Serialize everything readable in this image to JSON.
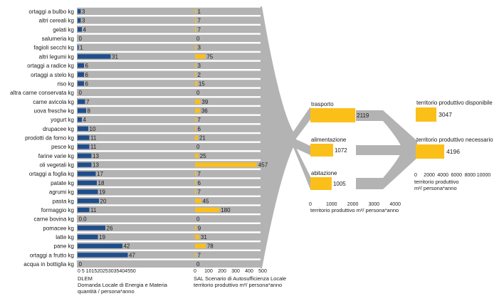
{
  "chart_data": {
    "type": "bar",
    "colors": {
      "dlem": "#1f4e8c",
      "sal": "#fbbf1a",
      "flow": "#b3b3b3",
      "text": "#1a1a1a"
    },
    "categories": [
      "ortaggi a bulbo kg",
      "altri cereali kg",
      "gelati kg",
      "salumeria kg",
      "fagioli secchi kg",
      "altri legumi kg",
      "ortaggi a radice kg",
      "ortaggi a stelo kg",
      "riso kg",
      "altra carne conservata kg",
      "carne avicola kg",
      "uova fresche kg",
      "yogurt kg",
      "drupacee kg",
      "prodotti da forno kg",
      "pesce kg",
      "farine varie kg",
      "oli vegetali kg",
      "ortaggi a foglia kg",
      "patate kg",
      "agrumi kg",
      "pasta kg",
      "formaggio kg",
      "carne bovina kg",
      "pomacee kg",
      "latte kg",
      "pane kg",
      "ortaggi a frutto kg",
      "acqua in bottiglia kg"
    ],
    "series": [
      {
        "key": "dlem",
        "values": [
          3,
          3,
          4,
          0,
          1,
          31,
          6,
          6,
          6,
          0,
          7,
          8,
          4,
          10,
          11,
          11,
          13,
          13,
          17,
          18,
          19,
          20,
          11,
          0.0,
          26,
          19,
          42,
          47,
          0
        ],
        "labels": [
          "3",
          "3",
          "4",
          "0",
          "1",
          "31",
          "6",
          "6",
          "6",
          "0",
          "7",
          "8",
          "4",
          "10",
          "11",
          "11",
          "13",
          "13",
          "17",
          "18",
          "19",
          "20",
          "11",
          "0.0",
          "26",
          "19",
          "42",
          "47",
          "0"
        ]
      },
      {
        "key": "sal",
        "values": [
          1,
          7,
          7,
          0,
          3,
          75,
          3,
          2,
          15,
          0,
          39,
          36,
          7,
          6,
          21,
          0,
          25,
          457,
          7,
          6,
          7,
          45,
          180,
          0,
          9,
          31,
          78,
          7,
          0
        ],
        "labels": [
          "1",
          "7",
          "7",
          "0",
          "3",
          "75",
          "3",
          "2",
          "15",
          "0",
          "39",
          "36",
          "7",
          "6",
          "21",
          "0",
          "25",
          "457",
          "7",
          "6",
          "7",
          "45",
          "180",
          "0",
          "9",
          "31",
          "78",
          "7",
          "0"
        ]
      }
    ],
    "axis_dlem": {
      "tick_text": "0 5 101520253035404550",
      "label_lines": [
        "DLEM",
        "Domanda Locale di Energia e Materia",
        "quantità / persona*anno"
      ],
      "range": [
        0,
        50
      ]
    },
    "axis_sal": {
      "ticks": [
        "0",
        "100",
        "200",
        "300",
        "400",
        "500"
      ],
      "tick_values": [
        0,
        100,
        200,
        300,
        400,
        500
      ],
      "label_lines": [
        "SAL Scenario di Autosufficienza Locale",
        "territorio produttivo m²/ persona*anno"
      ],
      "range": [
        0,
        500
      ]
    },
    "categories_groups": [
      {
        "name": "trasporto",
        "value": 2119,
        "label": "2119"
      },
      {
        "name": "alimentazione",
        "value": 1072,
        "label": "1072"
      },
      {
        "name": "abitazione",
        "value": 1005,
        "label": "1005"
      }
    ],
    "axis_groups": {
      "ticks": [
        "0",
        "1000",
        "2000",
        "3000",
        "4000"
      ],
      "tick_values": [
        0,
        1000,
        2000,
        3000,
        4000
      ],
      "label": "territorio produttivo m²/ persona*anno",
      "range": [
        0,
        4000
      ]
    },
    "totals": [
      {
        "name": "territorio produttivo disponibile",
        "value": 3047,
        "label": "3047"
      },
      {
        "name": "territorio produttivo necessario",
        "value": 4196,
        "label": "4196"
      }
    ],
    "axis_totals": {
      "ticks": [
        "0",
        "2000",
        "4000",
        "6000",
        "8000",
        "10000"
      ],
      "tick_values": [
        0,
        2000,
        4000,
        6000,
        8000,
        10000
      ],
      "label_lines": [
        "territorio produttivo",
        "m²/ persona*anno"
      ],
      "range": [
        0,
        10000
      ]
    }
  }
}
